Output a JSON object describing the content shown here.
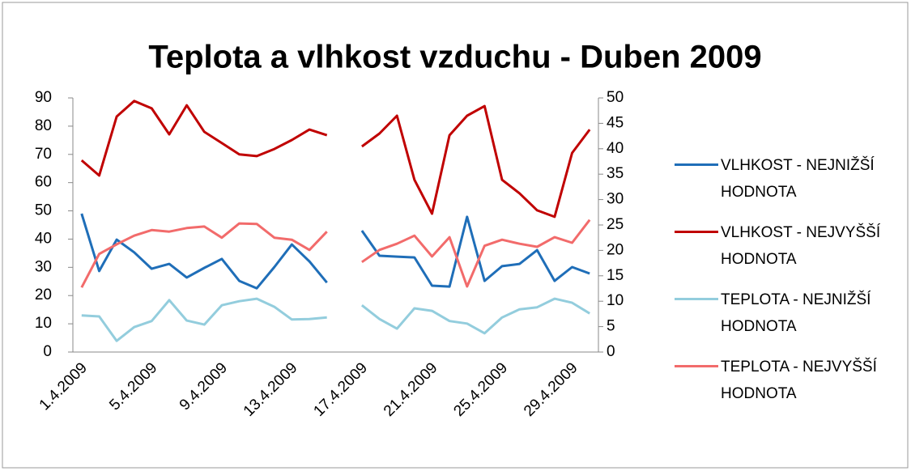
{
  "chart_data": {
    "type": "line",
    "title": "Teplota a vlhkost vzduchu - Duben 2009",
    "categories": [
      "1.4.2009",
      null,
      null,
      null,
      "5.4.2009",
      null,
      null,
      null,
      "9.4.2009",
      null,
      null,
      null,
      "13.4.2009",
      null,
      null,
      null,
      "17.4.2009",
      null,
      null,
      null,
      "21.4.2009",
      null,
      null,
      null,
      "25.4.2009",
      null,
      null,
      null,
      "29.4.2009",
      null
    ],
    "series": [
      {
        "name": "VLHKOST - NEJNIŽŠÍ HODNOTA",
        "color": "#1f6eb8",
        "axis": "y",
        "values": [
          49,
          28.7,
          39.8,
          35.3,
          29.5,
          31.2,
          26.4,
          29.8,
          33,
          25.2,
          22.6,
          30.1,
          38.1,
          32.1,
          24.6,
          null,
          43,
          34.1,
          33.8,
          33.5,
          23.5,
          23.2,
          47.9,
          25.2,
          30.4,
          31.2,
          36.1,
          25.2,
          30.1,
          27.8
        ]
      },
      {
        "name": "VLHKOST - NEJVYŠŠÍ HODNOTA",
        "color": "#c00000",
        "axis": "y",
        "values": [
          67.9,
          62.5,
          83.4,
          88.9,
          86.3,
          77.1,
          87.4,
          78,
          74,
          70,
          69.4,
          71.9,
          75.1,
          78.8,
          76.8,
          null,
          72.8,
          77.4,
          83.7,
          61,
          49,
          76.8,
          83.7,
          87.1,
          61,
          56.2,
          50.2,
          47.9,
          70.5,
          78.8
        ]
      },
      {
        "name": "TEPLOTA - NEJNIŽŠÍ HODNOTA",
        "color": "#93cddd",
        "axis": "y2",
        "values": [
          7.2,
          7,
          2.2,
          4.9,
          6.1,
          10.2,
          6.2,
          5.4,
          9.2,
          10,
          10.5,
          8.9,
          6.4,
          6.5,
          6.8,
          null,
          9.2,
          6.5,
          4.6,
          8.6,
          8.1,
          6.1,
          5.6,
          3.7,
          6.8,
          8.4,
          8.8,
          10.5,
          9.7,
          7.6
        ]
      },
      {
        "name": "TEPLOTA - NEJVYŠŠÍ HODNOTA",
        "color": "#f26b6b",
        "axis": "y2",
        "values": [
          12.7,
          19.3,
          21.2,
          22.9,
          24,
          23.7,
          24.4,
          24.7,
          22.5,
          25.3,
          25.2,
          22.5,
          22.1,
          20.1,
          23.7,
          null,
          17.7,
          20.1,
          21.3,
          22.9,
          18.8,
          22.6,
          12.9,
          20.9,
          22.1,
          21.3,
          20.7,
          22.6,
          21.5,
          26
        ]
      }
    ],
    "ylim": [
      0,
      90
    ],
    "yticks": [
      0,
      10,
      20,
      30,
      40,
      50,
      60,
      70,
      80,
      90
    ],
    "y2lim": [
      0,
      50
    ],
    "y2ticks": [
      0,
      5,
      10,
      15,
      20,
      25,
      30,
      35,
      40,
      45,
      50
    ],
    "legend": "right",
    "grid": false
  }
}
